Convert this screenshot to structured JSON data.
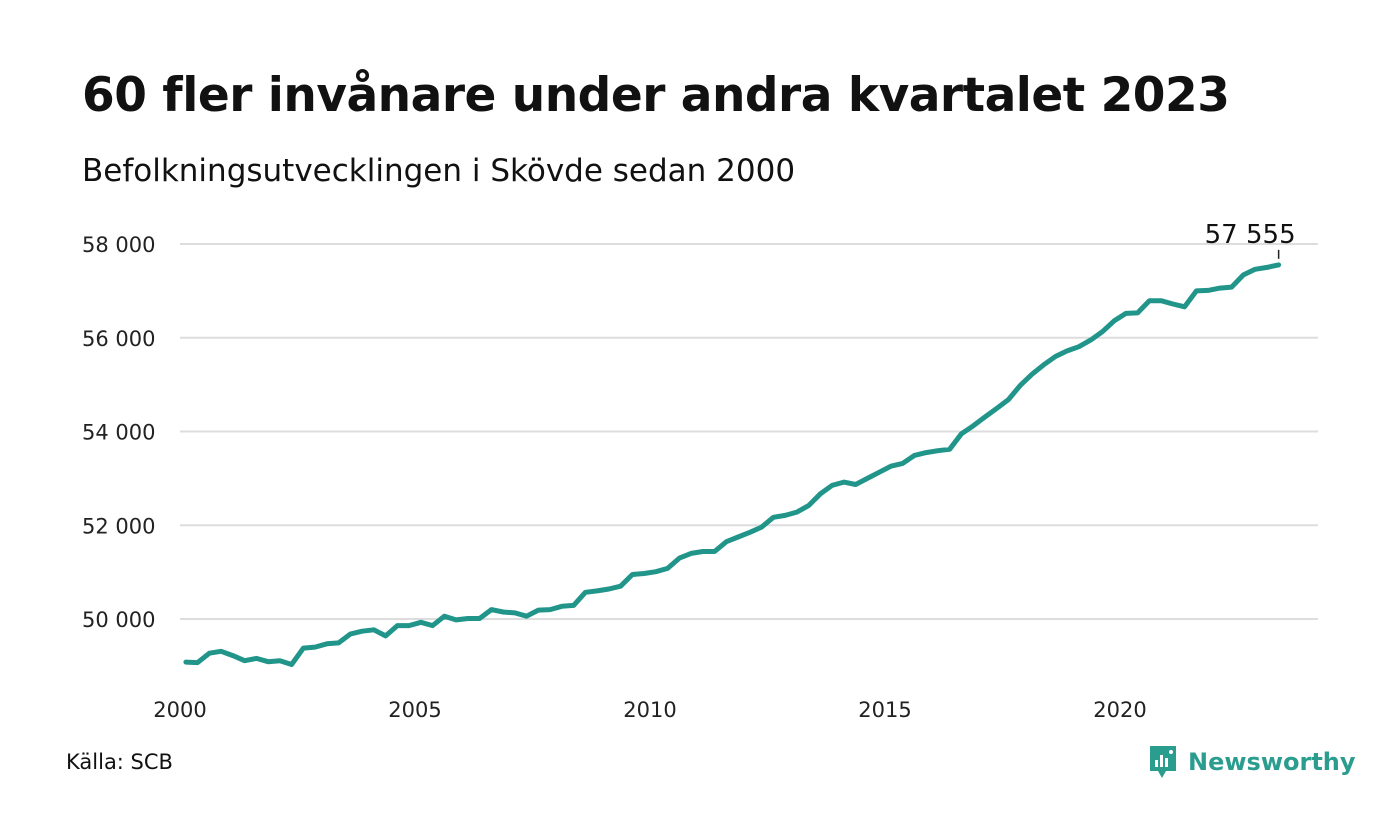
{
  "header": {
    "title": "60 fler invånare under andra kvartalet 2023",
    "subtitle": "Befolkningsutvecklingen i Skövde sedan 2000"
  },
  "footer": {
    "source": "Källa: SCB",
    "brand": "Newsworthy",
    "brand_icon": "newsworthy-logo-icon"
  },
  "colors": {
    "line": "#21958a",
    "grid": "#dddddd",
    "brand": "#2a9d8f"
  },
  "chart_data": {
    "type": "line",
    "title": "60 fler invånare under andra kvartalet 2023",
    "subtitle": "Befolkningsutvecklingen i Skövde sedan 2000",
    "xlabel": "",
    "ylabel": "",
    "x_ticks": [
      2000,
      2005,
      2010,
      2015,
      2020
    ],
    "x_tick_labels": [
      "2000",
      "2005",
      "2010",
      "2015",
      "2020"
    ],
    "y_ticks": [
      50000,
      52000,
      54000,
      56000,
      58000
    ],
    "y_tick_labels": [
      "50 000",
      "52 000",
      "54 000",
      "56 000",
      "58 000"
    ],
    "xlim": [
      2000,
      2024
    ],
    "ylim": [
      48900,
      58000
    ],
    "grid": true,
    "legend": "none",
    "last_value_label": "57 555",
    "x": [
      2000.125,
      2000.375,
      2000.625,
      2000.875,
      2001.125,
      2001.375,
      2001.625,
      2001.875,
      2002.125,
      2002.375,
      2002.625,
      2002.875,
      2003.125,
      2003.375,
      2003.625,
      2003.875,
      2004.125,
      2004.375,
      2004.625,
      2004.875,
      2005.125,
      2005.375,
      2005.625,
      2005.875,
      2006.125,
      2006.375,
      2006.625,
      2006.875,
      2007.125,
      2007.375,
      2007.625,
      2007.875,
      2008.125,
      2008.375,
      2008.625,
      2008.875,
      2009.125,
      2009.375,
      2009.625,
      2009.875,
      2010.125,
      2010.375,
      2010.625,
      2010.875,
      2011.125,
      2011.375,
      2011.625,
      2011.875,
      2012.125,
      2012.375,
      2012.625,
      2012.875,
      2013.125,
      2013.375,
      2013.625,
      2013.875,
      2014.125,
      2014.375,
      2014.625,
      2014.875,
      2015.125,
      2015.375,
      2015.625,
      2015.875,
      2016.125,
      2016.375,
      2016.625,
      2016.875,
      2017.125,
      2017.375,
      2017.625,
      2017.875,
      2018.125,
      2018.375,
      2018.625,
      2018.875,
      2019.125,
      2019.375,
      2019.625,
      2019.875,
      2020.125,
      2020.375,
      2020.625,
      2020.875,
      2021.125,
      2021.375,
      2021.625,
      2021.875,
      2022.125,
      2022.375,
      2022.625,
      2022.875,
      2023.125,
      2023.375
    ],
    "series": [
      {
        "values": [
          49080,
          49070,
          49270,
          49310,
          49220,
          49110,
          49160,
          49090,
          49110,
          49030,
          49380,
          49400,
          49470,
          49490,
          49680,
          49740,
          49770,
          49640,
          49860,
          49860,
          49930,
          49860,
          50060,
          49980,
          50010,
          50010,
          50200,
          50150,
          50130,
          50060,
          50190,
          50200,
          50270,
          50290,
          50570,
          50600,
          50640,
          50700,
          50950,
          50970,
          51010,
          51080,
          51300,
          51400,
          51440,
          51440,
          51650,
          51750,
          51850,
          51960,
          52170,
          52210,
          52280,
          52420,
          52670,
          52850,
          52920,
          52870,
          53000,
          53130,
          53260,
          53320,
          53490,
          53550,
          53590,
          53620,
          53950,
          54120,
          54310,
          54490,
          54680,
          54980,
          55220,
          55420,
          55600,
          55720,
          55810,
          55950,
          56130,
          56360,
          56520,
          56530,
          56790,
          56790,
          56720,
          56660,
          57000,
          57010,
          57060,
          57080,
          57340,
          57460,
          57500,
          57555
        ]
      }
    ]
  }
}
